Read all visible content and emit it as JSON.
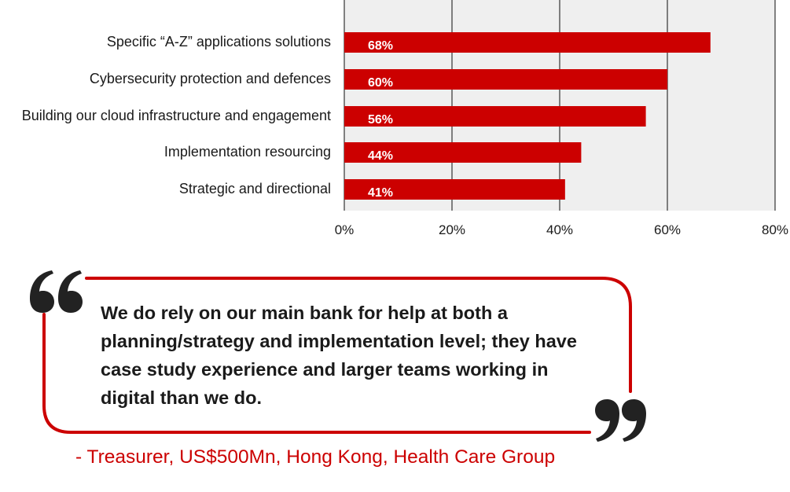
{
  "chart_data": {
    "type": "bar",
    "orientation": "horizontal",
    "categories": [
      "Specific “A-Z” applications solutions",
      "Cybersecurity protection and defences",
      "Building our cloud infrastructure and engagement",
      "Implementation resourcing",
      "Strategic and directional"
    ],
    "values": [
      68,
      60,
      56,
      44,
      41
    ],
    "data_labels": [
      "68%",
      "60%",
      "56%",
      "44%",
      "41%"
    ],
    "xlim": [
      0,
      80
    ],
    "ticks": [
      0,
      20,
      40,
      60,
      80
    ],
    "tick_labels": [
      "0%",
      "20%",
      "40%",
      "60%",
      "80%"
    ],
    "grid": true,
    "bar_color": "#cc0000",
    "plot_background": "#efefef",
    "title": "",
    "xlabel": "",
    "ylabel": ""
  },
  "quote": {
    "text": "We do rely on our main bank for help at both a planning/strategy and implementation level; they have case study experience and larger teams working in digital than we do.",
    "attribution": "- Treasurer, US$500Mn, Hong Kong, Health Care Group",
    "accent_color": "#cc0000",
    "open_mark_icon": "open-quote-icon",
    "close_mark_icon": "close-quote-icon"
  }
}
